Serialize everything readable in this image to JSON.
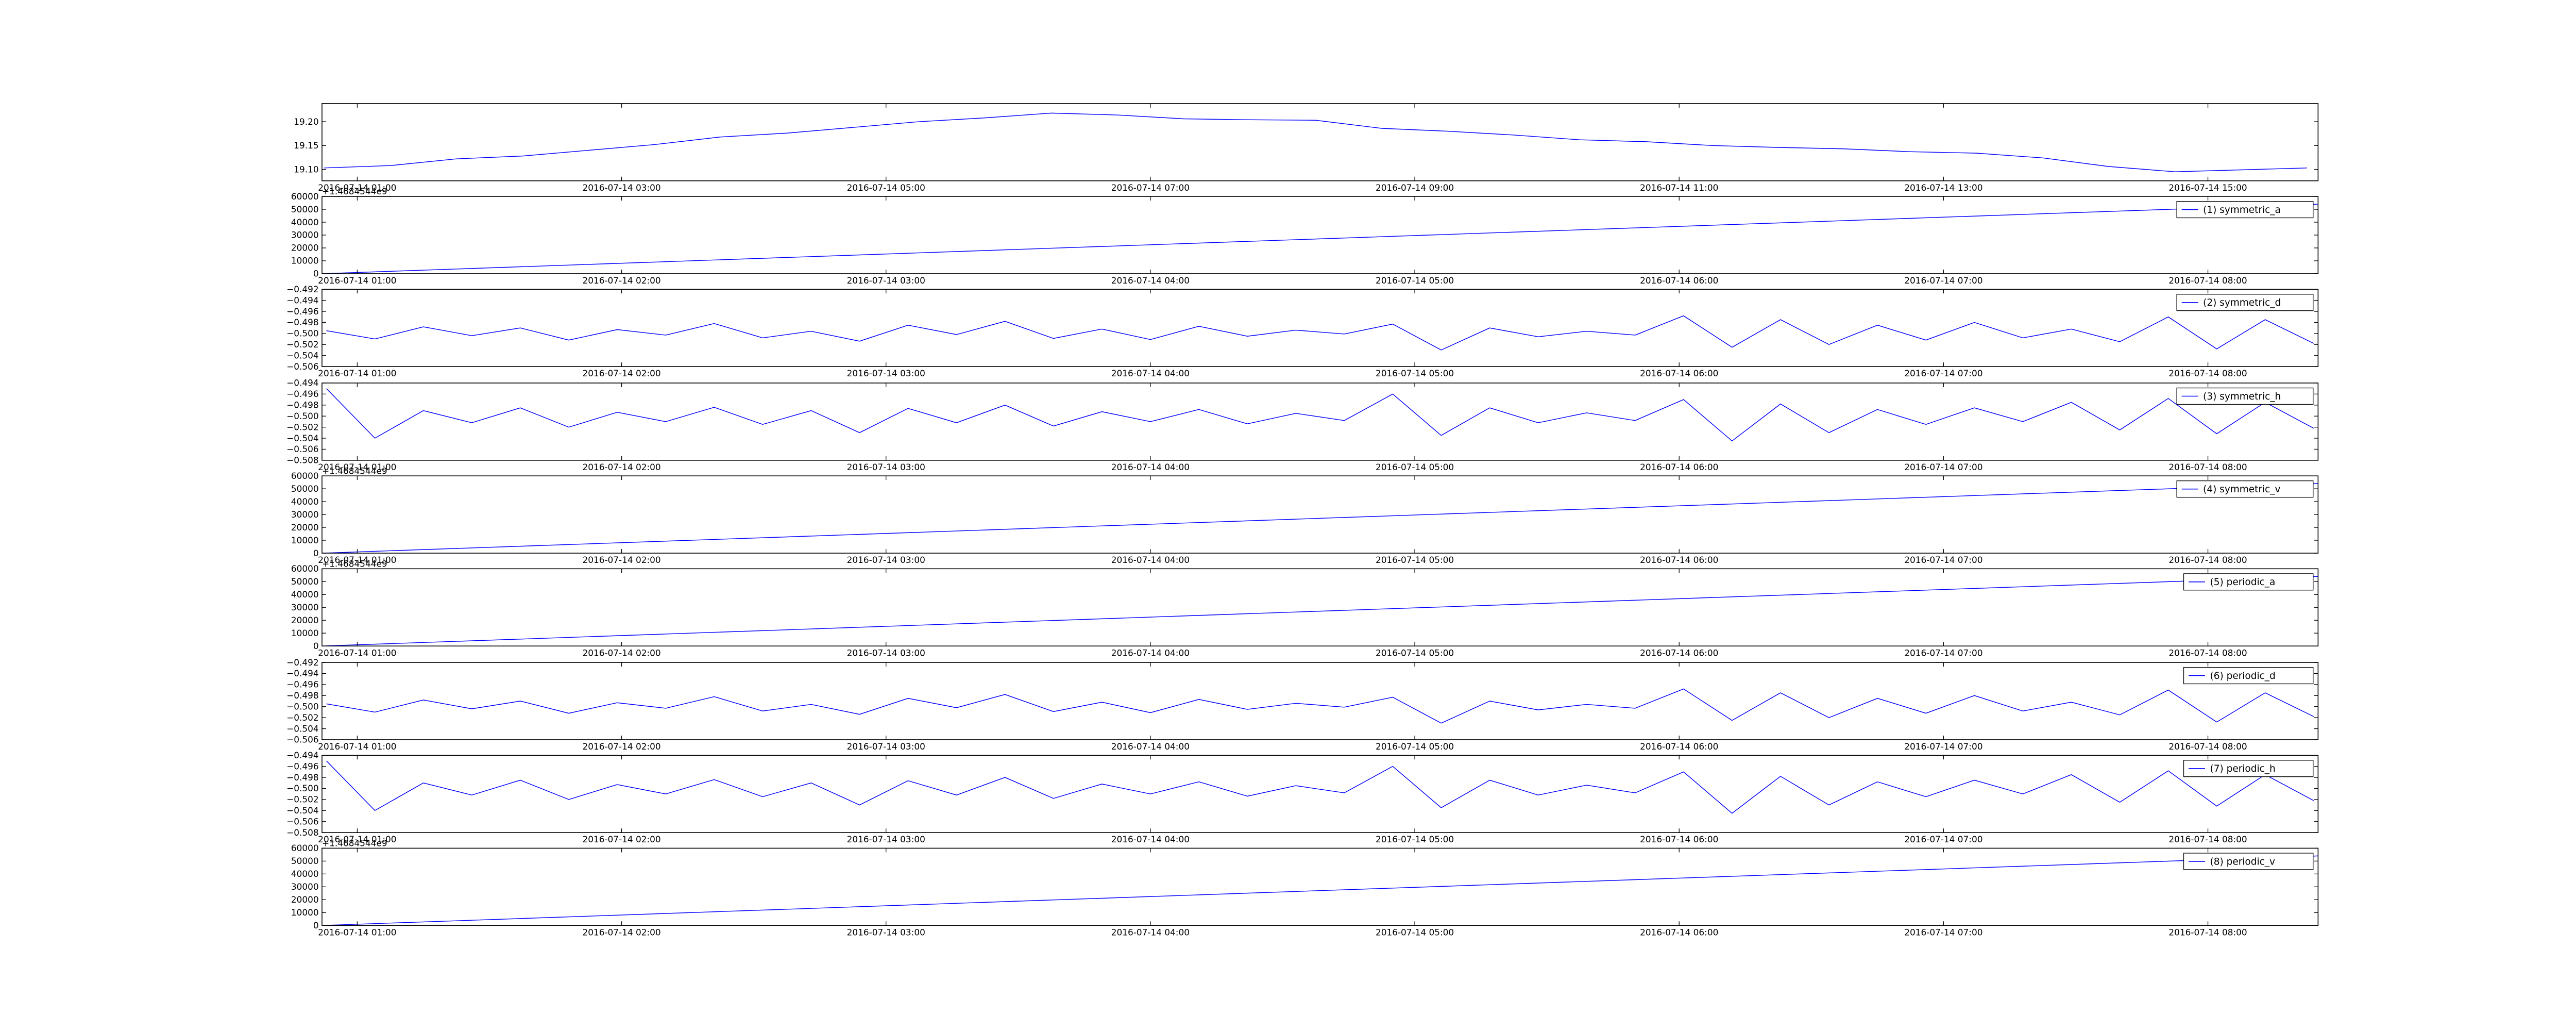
{
  "chart_data": [
    {
      "type": "line",
      "legend": false,
      "x": [
        "2016-07-14 00:45",
        "2016-07-14 01:15",
        "2016-07-14 01:45",
        "2016-07-14 02:15",
        "2016-07-14 02:45",
        "2016-07-14 03:15",
        "2016-07-14 03:45",
        "2016-07-14 04:15",
        "2016-07-14 04:45",
        "2016-07-14 05:15",
        "2016-07-14 05:45",
        "2016-07-14 06:15",
        "2016-07-14 06:45",
        "2016-07-14 07:15",
        "2016-07-14 07:45",
        "2016-07-14 08:15",
        "2016-07-14 08:45",
        "2016-07-14 09:15",
        "2016-07-14 09:45",
        "2016-07-14 10:15",
        "2016-07-14 10:45",
        "2016-07-14 11:15",
        "2016-07-14 11:45",
        "2016-07-14 12:15",
        "2016-07-14 12:45",
        "2016-07-14 13:15",
        "2016-07-14 13:45",
        "2016-07-14 14:15",
        "2016-07-14 14:45",
        "2016-07-14 15:15",
        "2016-07-14 15:45"
      ],
      "series": [
        {
          "color": "#0000ff",
          "values": [
            19.103,
            19.108,
            19.122,
            19.128,
            19.14,
            19.152,
            19.168,
            19.176,
            19.188,
            19.2,
            19.208,
            19.218,
            19.214,
            19.206,
            19.204,
            19.203,
            19.186,
            19.18,
            19.172,
            19.162,
            19.158,
            19.15,
            19.146,
            19.143,
            19.137,
            19.134,
            19.124,
            19.106,
            19.095,
            19.099,
            19.103
          ]
        }
      ],
      "xlim": [
        "2016-07-14 00:44",
        "2016-07-14 15:50"
      ],
      "xticks": [
        "2016-07-14 01:00",
        "2016-07-14 03:00",
        "2016-07-14 05:00",
        "2016-07-14 07:00",
        "2016-07-14 09:00",
        "2016-07-14 11:00",
        "2016-07-14 13:00",
        "2016-07-14 15:00"
      ],
      "ylim": [
        19.076,
        19.238
      ],
      "yticks": [
        {
          "value": 19.1,
          "label": "19.10"
        },
        19.15,
        {
          "value": 19.2,
          "label": "19.20"
        }
      ]
    },
    {
      "type": "line",
      "legend": "upper right",
      "offset_text": "+1.4684544e9",
      "x": [
        "2016-07-14 00:52",
        "2016-07-14 04:38",
        "2016-07-14 08:25"
      ],
      "series": [
        {
          "name": "(1) symmetric_a",
          "color": "#0000ff",
          "values": [
            0,
            27000,
            54000
          ]
        }
      ],
      "xlim": [
        "2016-07-14 00:52",
        "2016-07-14 08:25"
      ],
      "xticks": [
        "2016-07-14 01:00",
        "2016-07-14 02:00",
        "2016-07-14 03:00",
        "2016-07-14 04:00",
        "2016-07-14 05:00",
        "2016-07-14 06:00",
        "2016-07-14 07:00",
        "2016-07-14 08:00"
      ],
      "ylim": [
        0,
        60000
      ],
      "yticks": [
        0,
        10000,
        20000,
        30000,
        40000,
        50000,
        60000
      ]
    },
    {
      "type": "line",
      "legend": "upper right",
      "x": [
        "2016-07-14 00:53",
        "2016-07-14 01:04",
        "2016-07-14 01:15",
        "2016-07-14 01:26",
        "2016-07-14 01:37",
        "2016-07-14 01:48",
        "2016-07-14 01:59",
        "2016-07-14 02:10",
        "2016-07-14 02:21",
        "2016-07-14 02:32",
        "2016-07-14 02:43",
        "2016-07-14 02:54",
        "2016-07-14 03:05",
        "2016-07-14 03:16",
        "2016-07-14 03:27",
        "2016-07-14 03:38",
        "2016-07-14 03:49",
        "2016-07-14 04:00",
        "2016-07-14 04:11",
        "2016-07-14 04:22",
        "2016-07-14 04:33",
        "2016-07-14 04:44",
        "2016-07-14 04:55",
        "2016-07-14 05:06",
        "2016-07-14 05:17",
        "2016-07-14 05:28",
        "2016-07-14 05:39",
        "2016-07-14 05:50",
        "2016-07-14 06:01",
        "2016-07-14 06:12",
        "2016-07-14 06:23",
        "2016-07-14 06:34",
        "2016-07-14 06:45",
        "2016-07-14 06:56",
        "2016-07-14 07:07",
        "2016-07-14 07:18",
        "2016-07-14 07:29",
        "2016-07-14 07:40",
        "2016-07-14 07:51",
        "2016-07-14 08:02",
        "2016-07-14 08:13",
        "2016-07-14 08:24"
      ],
      "series": [
        {
          "name": "(2) symmetric_d",
          "color": "#0000ff",
          "values": [
            -0.4995,
            -0.501,
            -0.4988,
            -0.5004,
            -0.499,
            -0.5012,
            -0.4993,
            -0.5003,
            -0.4982,
            -0.5008,
            -0.4996,
            -0.5014,
            -0.4985,
            -0.5002,
            -0.4978,
            -0.5009,
            -0.4992,
            -0.5011,
            -0.4987,
            -0.5005,
            -0.4994,
            -0.5001,
            -0.4983,
            -0.503,
            -0.499,
            -0.5006,
            -0.4996,
            -0.5003,
            -0.4968,
            -0.5025,
            -0.4975,
            -0.502,
            -0.4985,
            -0.5012,
            -0.498,
            -0.5008,
            -0.4992,
            -0.5015,
            -0.497,
            -0.5028,
            -0.4975,
            -0.5018
          ]
        }
      ],
      "xlim": [
        "2016-07-14 00:52",
        "2016-07-14 08:25"
      ],
      "xticks": [
        "2016-07-14 01:00",
        "2016-07-14 02:00",
        "2016-07-14 03:00",
        "2016-07-14 04:00",
        "2016-07-14 05:00",
        "2016-07-14 06:00",
        "2016-07-14 07:00",
        "2016-07-14 08:00"
      ],
      "ylim": [
        -0.506,
        -0.492
      ],
      "yticks": [
        {
          "value": -0.506,
          "label": "−0.506"
        },
        {
          "value": -0.504,
          "label": "−0.504"
        },
        {
          "value": -0.502,
          "label": "−0.502"
        },
        {
          "value": -0.5,
          "label": "−0.500"
        },
        {
          "value": -0.498,
          "label": "−0.498"
        },
        {
          "value": -0.496,
          "label": "−0.496"
        },
        {
          "value": -0.494,
          "label": "−0.494"
        },
        {
          "value": -0.492,
          "label": "−0.492"
        }
      ]
    },
    {
      "type": "line",
      "legend": "upper right",
      "x": [
        "2016-07-14 00:53",
        "2016-07-14 01:04",
        "2016-07-14 01:15",
        "2016-07-14 01:26",
        "2016-07-14 01:37",
        "2016-07-14 01:48",
        "2016-07-14 01:59",
        "2016-07-14 02:10",
        "2016-07-14 02:21",
        "2016-07-14 02:32",
        "2016-07-14 02:43",
        "2016-07-14 02:54",
        "2016-07-14 03:05",
        "2016-07-14 03:16",
        "2016-07-14 03:27",
        "2016-07-14 03:38",
        "2016-07-14 03:49",
        "2016-07-14 04:00",
        "2016-07-14 04:11",
        "2016-07-14 04:22",
        "2016-07-14 04:33",
        "2016-07-14 04:44",
        "2016-07-14 04:55",
        "2016-07-14 05:06",
        "2016-07-14 05:17",
        "2016-07-14 05:28",
        "2016-07-14 05:39",
        "2016-07-14 05:50",
        "2016-07-14 06:01",
        "2016-07-14 06:12",
        "2016-07-14 06:23",
        "2016-07-14 06:34",
        "2016-07-14 06:45",
        "2016-07-14 06:56",
        "2016-07-14 07:07",
        "2016-07-14 07:18",
        "2016-07-14 07:29",
        "2016-07-14 07:40",
        "2016-07-14 07:51",
        "2016-07-14 08:02",
        "2016-07-14 08:13",
        "2016-07-14 08:24"
      ],
      "series": [
        {
          "name": "(3) symmetric_h",
          "color": "#0000ff",
          "values": [
            -0.495,
            -0.504,
            -0.499,
            -0.5012,
            -0.4985,
            -0.502,
            -0.4993,
            -0.501,
            -0.4984,
            -0.5015,
            -0.499,
            -0.503,
            -0.4986,
            -0.5012,
            -0.498,
            -0.5018,
            -0.4992,
            -0.501,
            -0.4988,
            -0.5014,
            -0.4995,
            -0.5008,
            -0.496,
            -0.5035,
            -0.4985,
            -0.5012,
            -0.4994,
            -0.5008,
            -0.497,
            -0.5045,
            -0.4978,
            -0.503,
            -0.4988,
            -0.5015,
            -0.4985,
            -0.501,
            -0.4975,
            -0.5025,
            -0.4968,
            -0.5032,
            -0.4975,
            -0.5022
          ]
        }
      ],
      "xlim": [
        "2016-07-14 00:52",
        "2016-07-14 08:25"
      ],
      "xticks": [
        "2016-07-14 01:00",
        "2016-07-14 02:00",
        "2016-07-14 03:00",
        "2016-07-14 04:00",
        "2016-07-14 05:00",
        "2016-07-14 06:00",
        "2016-07-14 07:00",
        "2016-07-14 08:00"
      ],
      "ylim": [
        -0.508,
        -0.494
      ],
      "yticks": [
        {
          "value": -0.508,
          "label": "−0.508"
        },
        {
          "value": -0.506,
          "label": "−0.506"
        },
        {
          "value": -0.504,
          "label": "−0.504"
        },
        {
          "value": -0.502,
          "label": "−0.502"
        },
        {
          "value": -0.5,
          "label": "−0.500"
        },
        {
          "value": -0.498,
          "label": "−0.498"
        },
        {
          "value": -0.496,
          "label": "−0.496"
        },
        {
          "value": -0.494,
          "label": "−0.494"
        }
      ]
    },
    {
      "type": "line",
      "legend": "upper right",
      "offset_text": "+1.4684544e9",
      "x": [
        "2016-07-14 00:52",
        "2016-07-14 04:38",
        "2016-07-14 08:25"
      ],
      "series": [
        {
          "name": "(4) symmetric_v",
          "color": "#0000ff",
          "values": [
            0,
            27000,
            54000
          ]
        }
      ],
      "xlim": [
        "2016-07-14 00:52",
        "2016-07-14 08:25"
      ],
      "xticks": [
        "2016-07-14 01:00",
        "2016-07-14 02:00",
        "2016-07-14 03:00",
        "2016-07-14 04:00",
        "2016-07-14 05:00",
        "2016-07-14 06:00",
        "2016-07-14 07:00",
        "2016-07-14 08:00"
      ],
      "ylim": [
        0,
        60000
      ],
      "yticks": [
        0,
        10000,
        20000,
        30000,
        40000,
        50000,
        60000
      ]
    },
    {
      "type": "line",
      "legend": "upper right",
      "offset_text": "+1.4684544e9",
      "x": [
        "2016-07-14 00:52",
        "2016-07-14 04:38",
        "2016-07-14 08:25"
      ],
      "series": [
        {
          "name": "(5) periodic_a",
          "color": "#0000ff",
          "values": [
            0,
            27000,
            54000
          ]
        }
      ],
      "xlim": [
        "2016-07-14 00:52",
        "2016-07-14 08:25"
      ],
      "xticks": [
        "2016-07-14 01:00",
        "2016-07-14 02:00",
        "2016-07-14 03:00",
        "2016-07-14 04:00",
        "2016-07-14 05:00",
        "2016-07-14 06:00",
        "2016-07-14 07:00",
        "2016-07-14 08:00"
      ],
      "ylim": [
        0,
        60000
      ],
      "yticks": [
        0,
        10000,
        20000,
        30000,
        40000,
        50000,
        60000
      ]
    },
    {
      "type": "line",
      "legend": "upper right",
      "x": [
        "2016-07-14 00:53",
        "2016-07-14 01:04",
        "2016-07-14 01:15",
        "2016-07-14 01:26",
        "2016-07-14 01:37",
        "2016-07-14 01:48",
        "2016-07-14 01:59",
        "2016-07-14 02:10",
        "2016-07-14 02:21",
        "2016-07-14 02:32",
        "2016-07-14 02:43",
        "2016-07-14 02:54",
        "2016-07-14 03:05",
        "2016-07-14 03:16",
        "2016-07-14 03:27",
        "2016-07-14 03:38",
        "2016-07-14 03:49",
        "2016-07-14 04:00",
        "2016-07-14 04:11",
        "2016-07-14 04:22",
        "2016-07-14 04:33",
        "2016-07-14 04:44",
        "2016-07-14 04:55",
        "2016-07-14 05:06",
        "2016-07-14 05:17",
        "2016-07-14 05:28",
        "2016-07-14 05:39",
        "2016-07-14 05:50",
        "2016-07-14 06:01",
        "2016-07-14 06:12",
        "2016-07-14 06:23",
        "2016-07-14 06:34",
        "2016-07-14 06:45",
        "2016-07-14 06:56",
        "2016-07-14 07:07",
        "2016-07-14 07:18",
        "2016-07-14 07:29",
        "2016-07-14 07:40",
        "2016-07-14 07:51",
        "2016-07-14 08:02",
        "2016-07-14 08:13",
        "2016-07-14 08:24"
      ],
      "series": [
        {
          "name": "(6) periodic_d",
          "color": "#0000ff",
          "values": [
            -0.4995,
            -0.501,
            -0.4988,
            -0.5004,
            -0.499,
            -0.5012,
            -0.4993,
            -0.5003,
            -0.4982,
            -0.5008,
            -0.4996,
            -0.5014,
            -0.4985,
            -0.5002,
            -0.4978,
            -0.5009,
            -0.4992,
            -0.5011,
            -0.4987,
            -0.5005,
            -0.4994,
            -0.5001,
            -0.4983,
            -0.503,
            -0.499,
            -0.5006,
            -0.4996,
            -0.5003,
            -0.4968,
            -0.5025,
            -0.4975,
            -0.502,
            -0.4985,
            -0.5012,
            -0.498,
            -0.5008,
            -0.4992,
            -0.5015,
            -0.497,
            -0.5028,
            -0.4975,
            -0.5018
          ]
        }
      ],
      "xlim": [
        "2016-07-14 00:52",
        "2016-07-14 08:25"
      ],
      "xticks": [
        "2016-07-14 01:00",
        "2016-07-14 02:00",
        "2016-07-14 03:00",
        "2016-07-14 04:00",
        "2016-07-14 05:00",
        "2016-07-14 06:00",
        "2016-07-14 07:00",
        "2016-07-14 08:00"
      ],
      "ylim": [
        -0.506,
        -0.492
      ],
      "yticks": [
        {
          "value": -0.506,
          "label": "−0.506"
        },
        {
          "value": -0.504,
          "label": "−0.504"
        },
        {
          "value": -0.502,
          "label": "−0.502"
        },
        {
          "value": -0.5,
          "label": "−0.500"
        },
        {
          "value": -0.498,
          "label": "−0.498"
        },
        {
          "value": -0.496,
          "label": "−0.496"
        },
        {
          "value": -0.494,
          "label": "−0.494"
        },
        {
          "value": -0.492,
          "label": "−0.492"
        }
      ]
    },
    {
      "type": "line",
      "legend": "upper right",
      "x": [
        "2016-07-14 00:53",
        "2016-07-14 01:04",
        "2016-07-14 01:15",
        "2016-07-14 01:26",
        "2016-07-14 01:37",
        "2016-07-14 01:48",
        "2016-07-14 01:59",
        "2016-07-14 02:10",
        "2016-07-14 02:21",
        "2016-07-14 02:32",
        "2016-07-14 02:43",
        "2016-07-14 02:54",
        "2016-07-14 03:05",
        "2016-07-14 03:16",
        "2016-07-14 03:27",
        "2016-07-14 03:38",
        "2016-07-14 03:49",
        "2016-07-14 04:00",
        "2016-07-14 04:11",
        "2016-07-14 04:22",
        "2016-07-14 04:33",
        "2016-07-14 04:44",
        "2016-07-14 04:55",
        "2016-07-14 05:06",
        "2016-07-14 05:17",
        "2016-07-14 05:28",
        "2016-07-14 05:39",
        "2016-07-14 05:50",
        "2016-07-14 06:01",
        "2016-07-14 06:12",
        "2016-07-14 06:23",
        "2016-07-14 06:34",
        "2016-07-14 06:45",
        "2016-07-14 06:56",
        "2016-07-14 07:07",
        "2016-07-14 07:18",
        "2016-07-14 07:29",
        "2016-07-14 07:40",
        "2016-07-14 07:51",
        "2016-07-14 08:02",
        "2016-07-14 08:13",
        "2016-07-14 08:24"
      ],
      "series": [
        {
          "name": "(7) periodic_h",
          "color": "#0000ff",
          "values": [
            -0.495,
            -0.504,
            -0.499,
            -0.5012,
            -0.4985,
            -0.502,
            -0.4993,
            -0.501,
            -0.4984,
            -0.5015,
            -0.499,
            -0.503,
            -0.4986,
            -0.5012,
            -0.498,
            -0.5018,
            -0.4992,
            -0.501,
            -0.4988,
            -0.5014,
            -0.4995,
            -0.5008,
            -0.496,
            -0.5035,
            -0.4985,
            -0.5012,
            -0.4994,
            -0.5008,
            -0.497,
            -0.5045,
            -0.4978,
            -0.503,
            -0.4988,
            -0.5015,
            -0.4985,
            -0.501,
            -0.4975,
            -0.5025,
            -0.4968,
            -0.5032,
            -0.4975,
            -0.5022
          ]
        }
      ],
      "xlim": [
        "2016-07-14 00:52",
        "2016-07-14 08:25"
      ],
      "xticks": [
        "2016-07-14 01:00",
        "2016-07-14 02:00",
        "2016-07-14 03:00",
        "2016-07-14 04:00",
        "2016-07-14 05:00",
        "2016-07-14 06:00",
        "2016-07-14 07:00",
        "2016-07-14 08:00"
      ],
      "ylim": [
        -0.508,
        -0.494
      ],
      "yticks": [
        {
          "value": -0.508,
          "label": "−0.508"
        },
        {
          "value": -0.506,
          "label": "−0.506"
        },
        {
          "value": -0.504,
          "label": "−0.504"
        },
        {
          "value": -0.502,
          "label": "−0.502"
        },
        {
          "value": -0.5,
          "label": "−0.500"
        },
        {
          "value": -0.498,
          "label": "−0.498"
        },
        {
          "value": -0.496,
          "label": "−0.496"
        },
        {
          "value": -0.494,
          "label": "−0.494"
        }
      ]
    },
    {
      "type": "line",
      "legend": "upper right",
      "offset_text": "+1.4684544e9",
      "x": [
        "2016-07-14 00:52",
        "2016-07-14 04:38",
        "2016-07-14 08:25"
      ],
      "series": [
        {
          "name": "(8) periodic_v",
          "color": "#0000ff",
          "values": [
            0,
            27000,
            54000
          ]
        }
      ],
      "xlim": [
        "2016-07-14 00:52",
        "2016-07-14 08:25"
      ],
      "xticks": [
        "2016-07-14 01:00",
        "2016-07-14 02:00",
        "2016-07-14 03:00",
        "2016-07-14 04:00",
        "2016-07-14 05:00",
        "2016-07-14 06:00",
        "2016-07-14 07:00",
        "2016-07-14 08:00"
      ],
      "ylim": [
        0,
        60000
      ],
      "yticks": [
        0,
        10000,
        20000,
        30000,
        40000,
        50000,
        60000
      ]
    }
  ]
}
